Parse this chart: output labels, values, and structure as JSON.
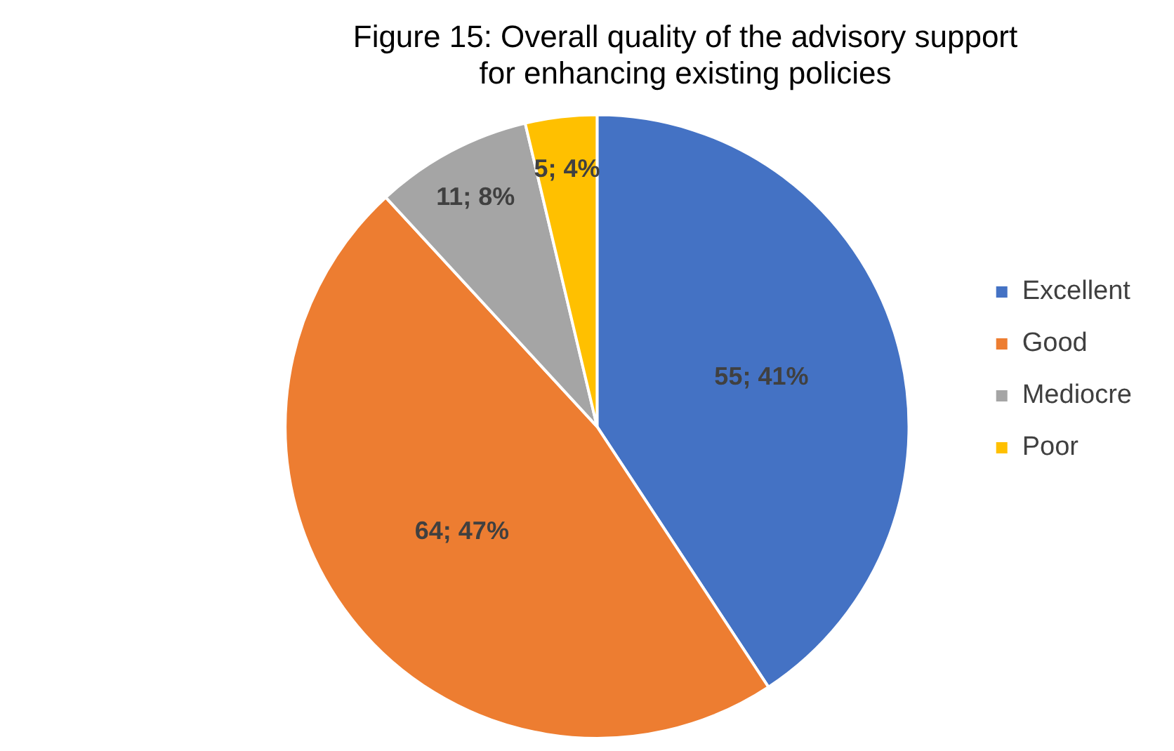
{
  "chart_data": {
    "type": "pie",
    "title": "Figure 15: Overall quality of the advisory support for enhancing existing policies",
    "categories": [
      "Excellent",
      "Good",
      "Mediocre",
      "Poor"
    ],
    "values": [
      55,
      64,
      11,
      5
    ],
    "colors": [
      "#4472c4",
      "#ed7d31",
      "#a5a5a5",
      "#ffc000"
    ],
    "value_labels": [
      "55; 41%",
      "64; 47%",
      "11; 8%",
      "5; 4%"
    ],
    "legend": "right"
  }
}
